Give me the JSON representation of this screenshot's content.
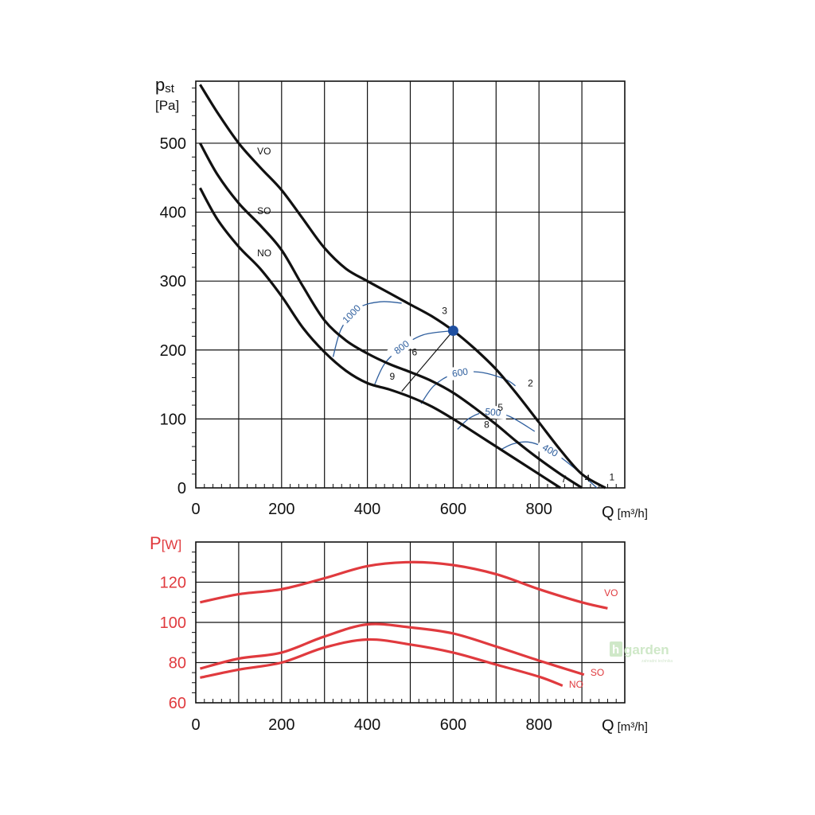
{
  "colors": {
    "curve": "#111111",
    "grid": "#111111",
    "isoline": "#2f5f9e",
    "power": "#e03a3e",
    "operating_point": "#1f4fa0",
    "watermark": "#cfe8c8"
  },
  "watermark": {
    "brand": "garden",
    "tagline": "zahradni technika"
  },
  "chart_data": [
    {
      "type": "line",
      "ylabel_main": "p",
      "ylabel_sub": "st",
      "yunit": "[Pa]",
      "xlabel": "Q",
      "xunit": "[m³/h]",
      "xlim": [
        0,
        1000
      ],
      "ylim": [
        0,
        590
      ],
      "xticks": [
        "0",
        "200",
        "400",
        "600",
        "800"
      ],
      "yticks": [
        "0",
        "100",
        "200",
        "300",
        "400",
        "500"
      ],
      "grid": true,
      "series": [
        {
          "name": "VO",
          "points": [
            [
              10,
              585
            ],
            [
              50,
              545
            ],
            [
              100,
              500
            ],
            [
              150,
              465
            ],
            [
              200,
              432
            ],
            [
              250,
              390
            ],
            [
              300,
              348
            ],
            [
              350,
              318
            ],
            [
              400,
              300
            ],
            [
              450,
              283
            ],
            [
              500,
              266
            ],
            [
              550,
              249
            ],
            [
              600,
              228
            ],
            [
              650,
              202
            ],
            [
              700,
              172
            ],
            [
              750,
              135
            ],
            [
              800,
              95
            ],
            [
              850,
              55
            ],
            [
              900,
              20
            ],
            [
              955,
              0
            ]
          ]
        },
        {
          "name": "SO",
          "points": [
            [
              10,
              500
            ],
            [
              50,
              455
            ],
            [
              100,
              413
            ],
            [
              150,
              381
            ],
            [
              200,
              345
            ],
            [
              250,
              292
            ],
            [
              300,
              243
            ],
            [
              350,
              214
            ],
            [
              400,
              195
            ],
            [
              450,
              180
            ],
            [
              500,
              168
            ],
            [
              550,
              155
            ],
            [
              600,
              138
            ],
            [
              650,
              116
            ],
            [
              700,
              92
            ],
            [
              750,
              66
            ],
            [
              800,
              42
            ],
            [
              850,
              20
            ],
            [
              900,
              0
            ]
          ]
        },
        {
          "name": "NO",
          "points": [
            [
              10,
              435
            ],
            [
              50,
              390
            ],
            [
              100,
              350
            ],
            [
              150,
              318
            ],
            [
              200,
              278
            ],
            [
              250,
              232
            ],
            [
              300,
              197
            ],
            [
              350,
              170
            ],
            [
              400,
              152
            ],
            [
              450,
              143
            ],
            [
              500,
              132
            ],
            [
              550,
              118
            ],
            [
              600,
              100
            ],
            [
              650,
              80
            ],
            [
              700,
              60
            ],
            [
              750,
              40
            ],
            [
              800,
              20
            ],
            [
              850,
              0
            ]
          ]
        }
      ],
      "isolines": [
        {
          "label": "1000",
          "points": [
            [
              320,
              190
            ],
            [
              340,
              232
            ],
            [
              380,
              261
            ],
            [
              430,
              270
            ],
            [
              480,
              268
            ]
          ]
        },
        {
          "label": "800",
          "points": [
            [
              415,
              147
            ],
            [
              440,
              180
            ],
            [
              480,
              204
            ],
            [
              530,
              222
            ],
            [
              600,
              228
            ]
          ]
        },
        {
          "label": "600",
          "points": [
            [
              525,
              122
            ],
            [
              555,
              148
            ],
            [
              600,
              165
            ],
            [
              660,
              168
            ],
            [
              720,
              158
            ],
            [
              745,
              148
            ]
          ]
        },
        {
          "label": "500",
          "points": [
            [
              610,
              85
            ],
            [
              640,
              102
            ],
            [
              680,
              110
            ],
            [
              730,
              104
            ],
            [
              790,
              82
            ]
          ]
        },
        {
          "label": "400",
          "points": [
            [
              710,
              55
            ],
            [
              740,
              64
            ],
            [
              780,
              66
            ],
            [
              830,
              53
            ],
            [
              880,
              30
            ],
            [
              935,
              0
            ]
          ]
        }
      ],
      "operating_point": {
        "x": 600,
        "y": 228
      },
      "operating_line": [
        [
          480,
          140
        ],
        [
          600,
          228
        ]
      ],
      "point_labels": [
        {
          "text": "1",
          "x": 970,
          "y": 11
        },
        {
          "text": "2",
          "x": 780,
          "y": 147
        },
        {
          "text": "3",
          "x": 580,
          "y": 252
        },
        {
          "text": "4",
          "x": 913,
          "y": 9
        },
        {
          "text": "5",
          "x": 710,
          "y": 112
        },
        {
          "text": "6",
          "x": 510,
          "y": 192
        },
        {
          "text": "7",
          "x": 858,
          "y": 8
        },
        {
          "text": "8",
          "x": 678,
          "y": 87
        },
        {
          "text": "9",
          "x": 458,
          "y": 157
        }
      ],
      "curve_labels": [
        {
          "text": "VO",
          "x": 143,
          "y": 484
        },
        {
          "text": "SO",
          "x": 143,
          "y": 397
        },
        {
          "text": "NO",
          "x": 143,
          "y": 336
        }
      ]
    },
    {
      "type": "line",
      "ylabel_main": "P",
      "yunit": "[W]",
      "xlabel": "Q",
      "xunit": "[m³/h]",
      "xlim": [
        0,
        1000
      ],
      "ylim": [
        60,
        140
      ],
      "xticks": [
        "0",
        "200",
        "400",
        "600",
        "800"
      ],
      "yticks": [
        "60",
        "80",
        "100",
        "120"
      ],
      "grid": true,
      "series": [
        {
          "name": "VO",
          "points": [
            [
              10,
              110
            ],
            [
              100,
              114
            ],
            [
              200,
              116.5
            ],
            [
              300,
              122
            ],
            [
              400,
              128
            ],
            [
              500,
              130
            ],
            [
              600,
              128.5
            ],
            [
              700,
              124
            ],
            [
              800,
              116.5
            ],
            [
              900,
              110
            ],
            [
              960,
              107
            ]
          ]
        },
        {
          "name": "SO",
          "points": [
            [
              10,
              77
            ],
            [
              100,
              82
            ],
            [
              200,
              85
            ],
            [
              300,
              93
            ],
            [
              400,
              99
            ],
            [
              500,
              97.5
            ],
            [
              600,
              94.5
            ],
            [
              700,
              88
            ],
            [
              800,
              81
            ],
            [
              905,
              74
            ]
          ]
        },
        {
          "name": "NO",
          "points": [
            [
              10,
              72.5
            ],
            [
              100,
              76.5
            ],
            [
              200,
              80
            ],
            [
              300,
              87.5
            ],
            [
              400,
              91.5
            ],
            [
              500,
              89
            ],
            [
              600,
              85
            ],
            [
              700,
              79
            ],
            [
              800,
              73
            ],
            [
              855,
              68.5
            ]
          ]
        }
      ],
      "curve_labels": [
        {
          "text": "VO",
          "x": 952,
          "y": 113
        },
        {
          "text": "SO",
          "x": 920,
          "y": 73.5
        },
        {
          "text": "NO",
          "x": 870,
          "y": 67.5
        }
      ]
    }
  ]
}
